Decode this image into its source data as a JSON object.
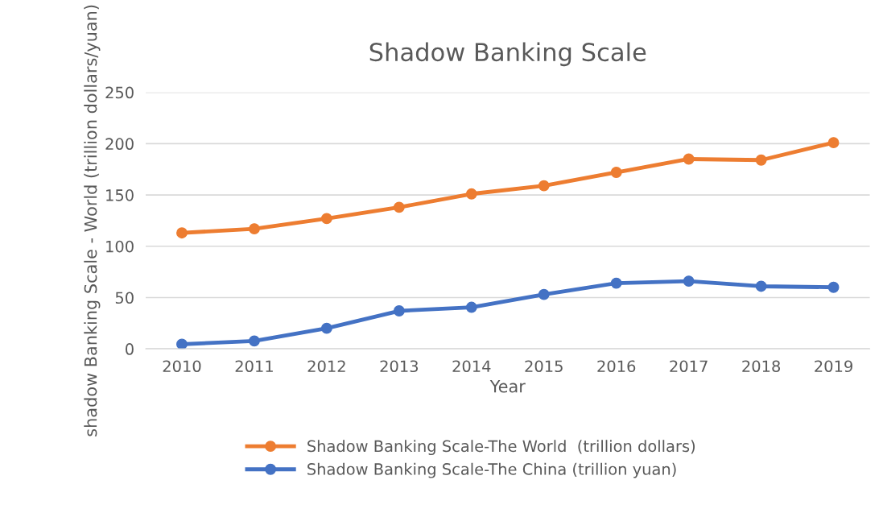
{
  "chart_data": {
    "type": "line",
    "title": "Shadow Banking Scale",
    "xlabel": "Year",
    "ylabel": "shadow Banking Scale - World (trillion dollars/yuan)",
    "categories": [
      "2010",
      "2011",
      "2012",
      "2013",
      "2014",
      "2015",
      "2016",
      "2017",
      "2018",
      "2019"
    ],
    "series": [
      {
        "name": "Shadow Banking Scale-The World  (trillion dollars)",
        "color": "#ed7d31",
        "values": [
          113,
          117,
          127,
          138,
          151,
          159,
          172,
          185,
          184,
          201
        ]
      },
      {
        "name": "Shadow Banking Scale-The China (trillion yuan)",
        "color": "#4472c4",
        "values": [
          4.5,
          7.7,
          20,
          37,
          40.5,
          53,
          64,
          66,
          61,
          60
        ]
      }
    ],
    "ylim": [
      0,
      250
    ],
    "yticks": [
      0,
      50,
      100,
      150,
      200,
      250
    ],
    "grid": "y",
    "legend": "bottom",
    "marker": "circle",
    "line_style": "solid"
  }
}
